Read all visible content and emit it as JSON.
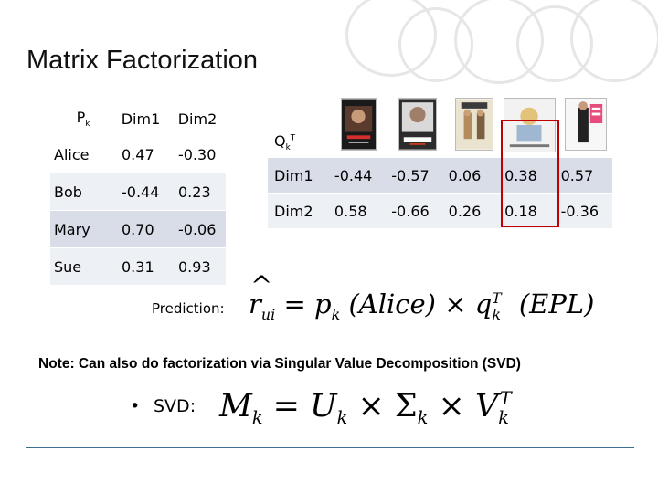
{
  "slide": {
    "title": "Matrix Factorization",
    "p_table": {
      "header": {
        "label": "P",
        "label_sub": "k",
        "cols": [
          "Dim1",
          "Dim2"
        ]
      },
      "rows": [
        {
          "name": "Alice",
          "values": [
            "0.47",
            "-0.30"
          ]
        },
        {
          "name": "Bob",
          "values": [
            "-0.44",
            "0.23"
          ]
        },
        {
          "name": "Mary",
          "values": [
            "0.70",
            "-0.06"
          ]
        },
        {
          "name": "Sue",
          "values": [
            "0.31",
            "0.93"
          ]
        }
      ]
    },
    "q_table": {
      "header": {
        "label": "Q",
        "label_sub": "k",
        "label_sup": "T"
      },
      "rows": [
        {
          "name": "Dim1",
          "values": [
            "-0.44",
            "-0.57",
            "0.06",
            "0.38",
            "0.57"
          ]
        },
        {
          "name": "Dim2",
          "values": [
            "0.58",
            "-0.66",
            "0.26",
            "0.18",
            "-0.36"
          ]
        }
      ],
      "highlight_color": "#c00000"
    },
    "posters": [
      "movie-poster-1",
      "movie-poster-2",
      "movie-poster-3",
      "movie-poster-4",
      "movie-poster-5"
    ],
    "prediction": {
      "label": "Prediction:",
      "r": "r",
      "r_sub": "ui",
      "eq": "=",
      "p": "p",
      "p_sub": "k",
      "alice": "(Alice)",
      "times": "×",
      "q": "q",
      "q_sub": "k",
      "q_sup": "T",
      "epl": "(EPL)"
    },
    "note": "Note: Can also do factorization via Singular Value Decomposition (SVD)",
    "svd": {
      "bullet": "•",
      "label": "SVD:",
      "m": "M",
      "m_sub": "k",
      "eq": "=",
      "u": "U",
      "u_sub": "k",
      "times1": "×",
      "sigma": "Σ",
      "sigma_sub": "k",
      "times2": "×",
      "v": "V",
      "v_sub": "k",
      "v_sup": "T"
    }
  }
}
